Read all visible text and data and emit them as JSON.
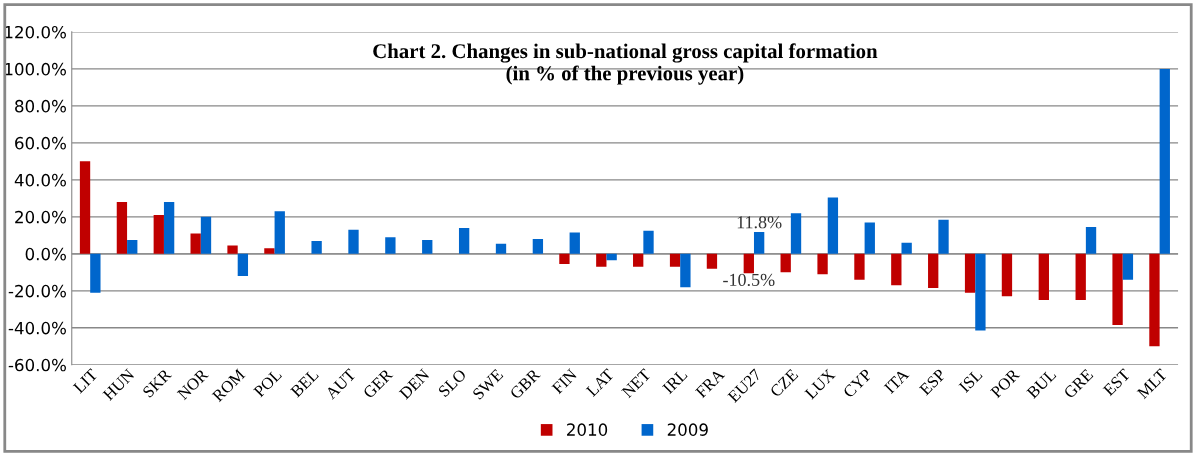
{
  "chart_data": {
    "type": "bar",
    "title": "Chart 2. Changes in sub-national gross capital formation\n(in % of the previous year)",
    "categories": [
      "LIT",
      "HUN",
      "SKR",
      "NOR",
      "ROM",
      "POL",
      "BEL",
      "AUT",
      "GER",
      "DEN",
      "SLO",
      "SWE",
      "GBR",
      "FIN",
      "LAT",
      "NET",
      "IRL",
      "FRA",
      "EU27",
      "CZE",
      "LUX",
      "CYP",
      "ITA",
      "ESP",
      "ISL",
      "POR",
      "BUL",
      "GRE",
      "EST",
      "MLT"
    ],
    "series": [
      {
        "name": "2010",
        "color": "#c00000",
        "values": [
          50,
          28,
          21,
          11,
          4.5,
          3,
          null,
          null,
          null,
          null,
          null,
          null,
          null,
          -5.5,
          -7,
          -7,
          -7,
          -8,
          -10.5,
          -10,
          -11,
          -14,
          -17,
          -18.5,
          -21,
          -23,
          -25,
          -25,
          -38.5,
          -50
        ],
        "value_labels": [
          null,
          null,
          null,
          null,
          null,
          null,
          null,
          null,
          null,
          null,
          null,
          null,
          null,
          null,
          null,
          null,
          null,
          null,
          "-10.5%",
          null,
          null,
          null,
          null,
          null,
          null,
          null,
          null,
          null,
          null,
          null
        ]
      },
      {
        "name": "2009",
        "color": "#0066cc",
        "values": [
          -21,
          7.5,
          28,
          20,
          -12,
          23,
          7,
          13,
          9,
          7.5,
          14,
          5.5,
          8,
          11.5,
          -3.5,
          12.5,
          -18,
          null,
          11.8,
          22,
          30.5,
          17,
          6,
          18.5,
          -41.5,
          null,
          null,
          14.5,
          -14,
          100
        ],
        "value_labels": [
          null,
          null,
          null,
          null,
          null,
          null,
          null,
          null,
          null,
          null,
          null,
          null,
          null,
          null,
          null,
          null,
          null,
          null,
          "11.8%",
          null,
          null,
          null,
          null,
          null,
          null,
          null,
          null,
          null,
          null,
          null
        ]
      }
    ],
    "ylim": [
      -60,
      120
    ],
    "yticks": [
      {
        "value": -60,
        "label": "-60.0%"
      },
      {
        "value": -40,
        "label": "-40.0%"
      },
      {
        "value": -20,
        "label": "-20.0%"
      },
      {
        "value": 0,
        "label": "0.0%"
      },
      {
        "value": 20,
        "label": "20.0%"
      },
      {
        "value": 40,
        "label": "40.0%"
      },
      {
        "value": 60,
        "label": "60.0%"
      },
      {
        "value": 80,
        "label": "80.0%"
      },
      {
        "value": 100,
        "label": "100.0%"
      },
      {
        "value": 120,
        "label": "120.0%"
      }
    ],
    "grid": "y",
    "legend": "bottom"
  }
}
